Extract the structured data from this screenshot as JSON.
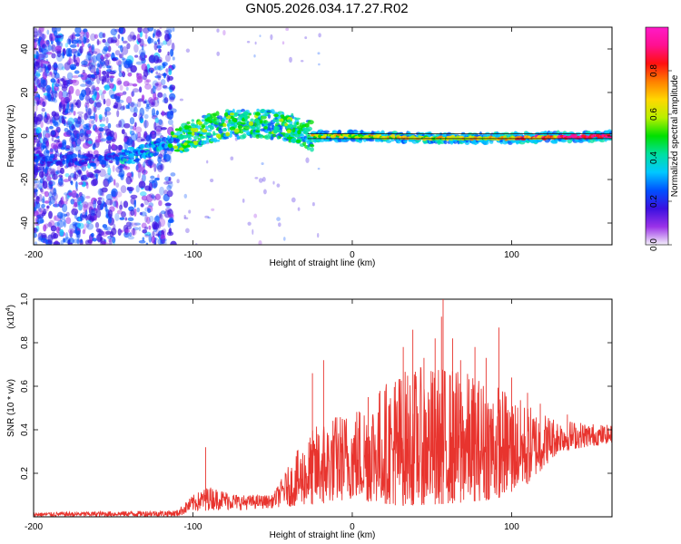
{
  "title": "GN05.2026.034.17.27.R02",
  "chart_data": [
    {
      "type": "heatmap",
      "xlabel": "Height of straight line (km)",
      "ylabel": "Frequency (Hz)",
      "xlim": [
        -200,
        163
      ],
      "ylim": [
        -50,
        50
      ],
      "xticks": [
        -200,
        -100,
        0,
        100
      ],
      "yticks": [
        -40,
        -20,
        0,
        20,
        40
      ],
      "colorbar": {
        "label": "Normalized spectral amplitude",
        "range": [
          0,
          1
        ],
        "ticks": [
          "0.0",
          "0.2",
          "0.4",
          "0.6",
          "0.8"
        ],
        "colors": [
          "#f4f0fa",
          "#9a32e8",
          "#3a10e0",
          "#0050ff",
          "#00c8ff",
          "#00e0a0",
          "#00e000",
          "#b8f000",
          "#ffd800",
          "#ff8000",
          "#ff1010",
          "#ff1090",
          "#ff1ac8"
        ]
      },
      "ridge": [
        {
          "x": -200,
          "y": -11
        },
        {
          "x": -160,
          "y": -11
        },
        {
          "x": -140,
          "y": -9
        },
        {
          "x": -120,
          "y": -5
        },
        {
          "x": -100,
          "y": 1
        },
        {
          "x": -80,
          "y": 5
        },
        {
          "x": -60,
          "y": 6
        },
        {
          "x": -40,
          "y": 4
        },
        {
          "x": -25,
          "y": 0
        },
        {
          "x": 0,
          "y": 0
        },
        {
          "x": 50,
          "y": -1
        },
        {
          "x": 100,
          "y": -1
        },
        {
          "x": 163,
          "y": 0
        }
      ]
    },
    {
      "type": "line",
      "xlabel": "Height of straight line (km)",
      "ylabel": "SNR (10 * v/v)",
      "yscale_label": "(x10",
      "yscale_exp": "4",
      "yscale_close": ")",
      "xlim": [
        -200,
        163
      ],
      "ylim": [
        0,
        1.0
      ],
      "xticks": [
        -200,
        -100,
        0,
        100
      ],
      "yticks": [
        "0.2",
        "0.4",
        "0.6",
        "0.8",
        "1.0"
      ],
      "color": "#e8342e",
      "envelope": [
        {
          "x": -200,
          "lo": 0.0,
          "hi": 0.02
        },
        {
          "x": -110,
          "lo": 0.0,
          "hi": 0.03
        },
        {
          "x": -100,
          "lo": 0.02,
          "hi": 0.1
        },
        {
          "x": -90,
          "lo": 0.03,
          "hi": 0.14
        },
        {
          "x": -70,
          "lo": 0.03,
          "hi": 0.1
        },
        {
          "x": -50,
          "lo": 0.04,
          "hi": 0.1
        },
        {
          "x": -35,
          "lo": 0.05,
          "hi": 0.3
        },
        {
          "x": -20,
          "lo": 0.06,
          "hi": 0.45
        },
        {
          "x": 0,
          "lo": 0.08,
          "hi": 0.5
        },
        {
          "x": 30,
          "lo": 0.05,
          "hi": 0.68
        },
        {
          "x": 60,
          "lo": 0.06,
          "hi": 0.7
        },
        {
          "x": 90,
          "lo": 0.08,
          "hi": 0.62
        },
        {
          "x": 110,
          "lo": 0.15,
          "hi": 0.52
        },
        {
          "x": 130,
          "lo": 0.3,
          "hi": 0.45
        },
        {
          "x": 163,
          "lo": 0.34,
          "hi": 0.42
        }
      ],
      "spikes": [
        {
          "x": -92,
          "y": 0.32
        },
        {
          "x": -25,
          "y": 0.66
        },
        {
          "x": -18,
          "y": 0.72
        },
        {
          "x": 10,
          "y": 0.55
        },
        {
          "x": 27,
          "y": 0.62
        },
        {
          "x": 32,
          "y": 0.78
        },
        {
          "x": 38,
          "y": 0.86
        },
        {
          "x": 45,
          "y": 0.73
        },
        {
          "x": 52,
          "y": 0.82
        },
        {
          "x": 56,
          "y": 0.92
        },
        {
          "x": 57,
          "y": 1.0
        },
        {
          "x": 63,
          "y": 0.82
        },
        {
          "x": 68,
          "y": 0.72
        },
        {
          "x": 77,
          "y": 0.78
        },
        {
          "x": 84,
          "y": 0.73
        },
        {
          "x": 92,
          "y": 0.87
        },
        {
          "x": 100,
          "y": 0.64
        },
        {
          "x": 110,
          "y": 0.57
        },
        {
          "x": 118,
          "y": 0.52
        },
        {
          "x": 135,
          "y": 0.47
        }
      ]
    }
  ]
}
